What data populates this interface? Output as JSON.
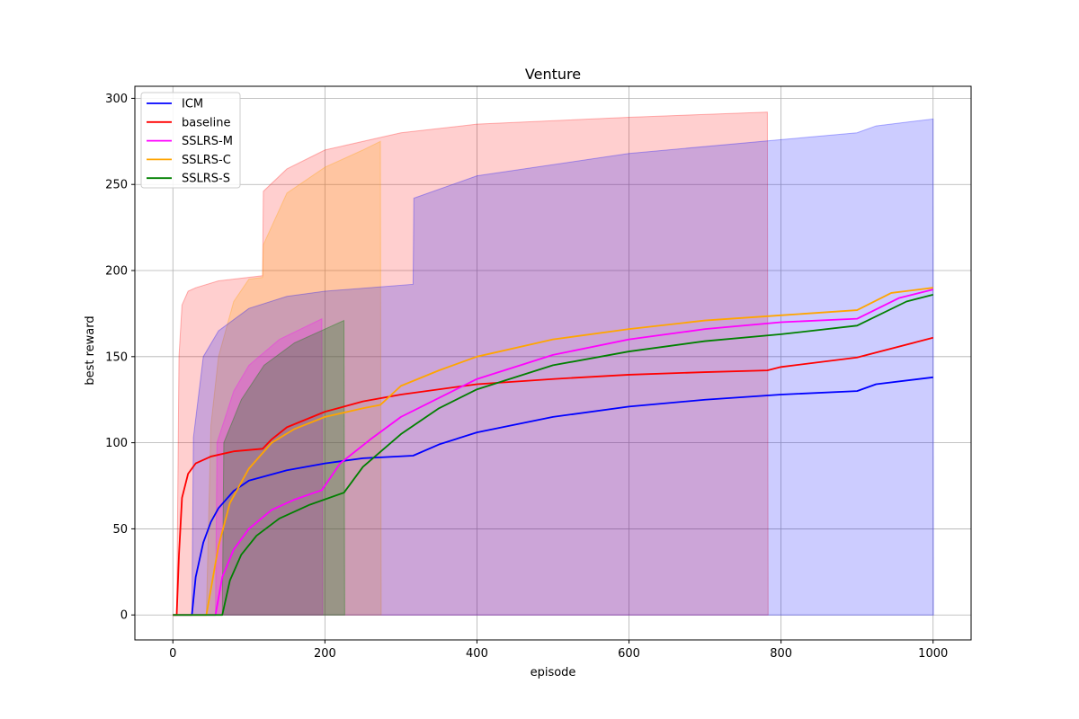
{
  "chart_data": {
    "type": "line",
    "title": "Venture",
    "xlabel": "episode",
    "ylabel": "best reward",
    "xlim": [
      -50,
      1050
    ],
    "ylim": [
      -14.5,
      307
    ],
    "xticks": [
      0,
      200,
      400,
      600,
      800,
      1000
    ],
    "yticks": [
      0,
      50,
      100,
      150,
      200,
      250,
      300
    ],
    "grid": true,
    "legend_position": "top-left",
    "bands": [
      {
        "series": "baseline",
        "color": "#ff0000",
        "opacity": 0.19,
        "x": [
          5,
          8,
          12,
          20,
          30,
          60,
          118,
          119,
          150,
          200,
          300,
          400,
          600,
          782,
          783
        ],
        "upper": [
          0,
          150,
          180,
          188,
          190,
          194,
          197,
          246,
          259,
          270,
          280,
          285,
          289,
          292,
          0
        ],
        "lower": [
          0,
          0,
          0,
          0,
          0,
          0,
          0,
          0,
          0,
          0,
          0,
          0,
          0,
          0,
          0
        ]
      },
      {
        "series": "SSLRS-C",
        "color": "#ffa500",
        "opacity": 0.22,
        "x": [
          44,
          50,
          60,
          80,
          100,
          118,
          119,
          150,
          200,
          250,
          273,
          274
        ],
        "upper": [
          0,
          110,
          150,
          182,
          195,
          196,
          215,
          245,
          260,
          270,
          275,
          0
        ],
        "lower": [
          0,
          0,
          0,
          0,
          0,
          0,
          0,
          0,
          0,
          0,
          0,
          0
        ]
      },
      {
        "series": "ICM",
        "color": "#0000ff",
        "opacity": 0.2,
        "x": [
          25,
          27,
          40,
          60,
          100,
          150,
          200,
          316,
          317,
          400,
          600,
          800,
          900,
          925,
          1000,
          1000.5
        ],
        "upper": [
          0,
          103,
          150,
          165,
          178,
          185,
          188,
          192,
          242,
          255,
          268,
          276,
          280,
          284,
          288,
          0
        ],
        "lower": [
          0,
          0,
          0,
          0,
          0,
          0,
          0,
          0,
          0,
          0,
          0,
          0,
          0,
          0,
          0,
          0
        ]
      },
      {
        "series": "SSLRS-M",
        "color": "#ff00ff",
        "opacity": 0.22,
        "x": [
          56,
          58,
          80,
          100,
          140,
          196,
          197
        ],
        "upper": [
          0,
          100,
          130,
          145,
          160,
          172,
          0
        ],
        "lower": [
          0,
          0,
          0,
          0,
          0,
          0,
          0
        ]
      },
      {
        "series": "SSLRS-S",
        "color": "#008000",
        "opacity": 0.25,
        "x": [
          65,
          67,
          90,
          120,
          160,
          200,
          225,
          226
        ],
        "upper": [
          0,
          100,
          125,
          145,
          158,
          166,
          171,
          0
        ],
        "lower": [
          0,
          0,
          0,
          0,
          0,
          0,
          0,
          0
        ]
      }
    ],
    "series": [
      {
        "name": "ICM",
        "color": "#0000ff",
        "x": [
          0,
          25,
          30,
          40,
          50,
          60,
          80,
          100,
          150,
          200,
          250,
          316,
          350,
          400,
          500,
          600,
          700,
          800,
          900,
          925,
          1000
        ],
        "y": [
          0,
          0,
          22,
          42,
          54,
          62,
          72,
          78,
          84,
          88,
          91,
          92.5,
          99,
          106,
          115,
          121,
          125,
          128,
          130,
          134,
          138
        ]
      },
      {
        "name": "baseline",
        "color": "#ff0000",
        "x": [
          0,
          5,
          8,
          12,
          20,
          30,
          50,
          80,
          118,
          130,
          150,
          200,
          250,
          300,
          400,
          500,
          600,
          700,
          782,
          800,
          900,
          1000
        ],
        "y": [
          0,
          0,
          35,
          68,
          82,
          88,
          92,
          95,
          96.5,
          102,
          109,
          118,
          124,
          128,
          134,
          137,
          139.5,
          141,
          142,
          144,
          149.5,
          161
        ]
      },
      {
        "name": "SSLRS-M",
        "color": "#ff00ff",
        "x": [
          0,
          56,
          65,
          80,
          100,
          130,
          160,
          196,
          220,
          260,
          300,
          400,
          500,
          600,
          700,
          800,
          900,
          955,
          1000
        ],
        "y": [
          0,
          0,
          22,
          38,
          50,
          61,
          67,
          72.5,
          88,
          102,
          115,
          137,
          151,
          160,
          166,
          170,
          172,
          184,
          189
        ]
      },
      {
        "name": "SSLRS-C",
        "color": "#ffa500",
        "x": [
          0,
          44,
          50,
          60,
          75,
          100,
          130,
          160,
          200,
          250,
          273,
          300,
          350,
          400,
          500,
          600,
          700,
          800,
          900,
          945,
          1000
        ],
        "y": [
          0,
          0,
          15,
          40,
          65,
          85,
          100,
          108,
          115,
          120,
          122,
          133,
          142,
          150,
          160,
          166,
          171,
          174,
          177,
          187,
          190
        ]
      },
      {
        "name": "SSLRS-S",
        "color": "#008000",
        "x": [
          0,
          65,
          75,
          90,
          110,
          140,
          180,
          225,
          250,
          300,
          350,
          400,
          500,
          600,
          700,
          800,
          900,
          965,
          1000
        ],
        "y": [
          0,
          0,
          20,
          35,
          46,
          56,
          64,
          71,
          86,
          105,
          120,
          131,
          145,
          153,
          159,
          163,
          168,
          182,
          186
        ]
      }
    ]
  }
}
